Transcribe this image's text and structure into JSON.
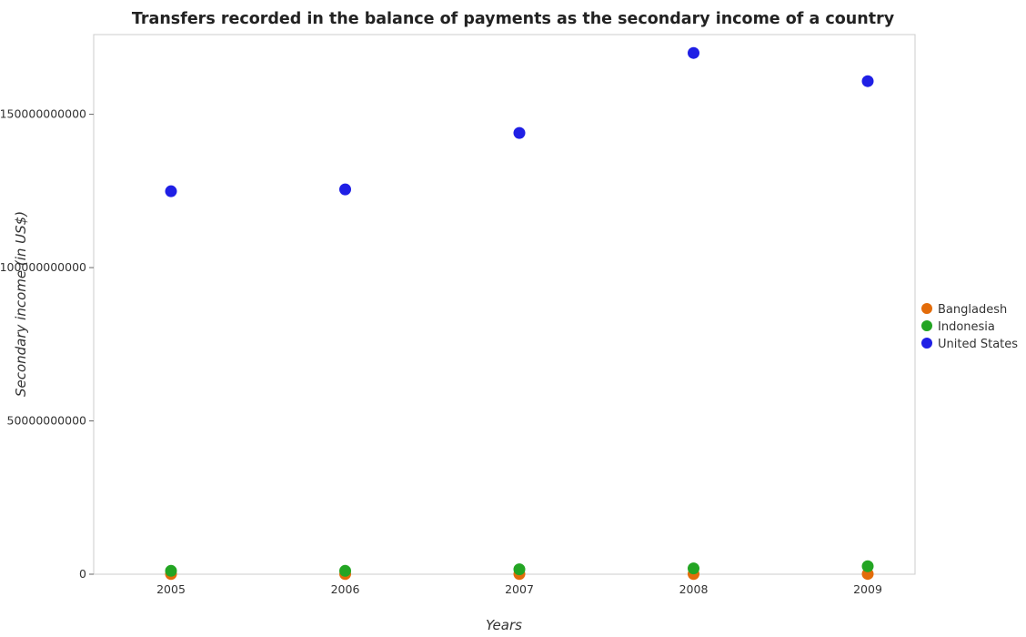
{
  "chart_data": {
    "type": "scatter",
    "title": "Transfers recorded in the balance of payments as the secondary income of a country",
    "xlabel": "Years",
    "ylabel": "Secondary income (in US$)",
    "categories": [
      "2005",
      "2006",
      "2007",
      "2008",
      "2009"
    ],
    "ylim": [
      0,
      176000000000
    ],
    "yticks": [
      0,
      50000000000,
      100000000000,
      150000000000
    ],
    "ytick_labels": [
      "0",
      "50000000000",
      "100000000000",
      "150000000000"
    ],
    "grid": false,
    "legend_position": "right",
    "series": [
      {
        "name": "Bangladesh",
        "color": "#e36c0a",
        "values": [
          60000000,
          60000000,
          70000000,
          80000000,
          90000000
        ]
      },
      {
        "name": "Indonesia",
        "color": "#23a523",
        "values": [
          1100000000,
          1100000000,
          1600000000,
          1900000000,
          2600000000
        ]
      },
      {
        "name": "United States",
        "color": "#1f1fe5",
        "values": [
          124900000000,
          125500000000,
          143900000000,
          170000000000,
          160800000000
        ]
      }
    ]
  }
}
